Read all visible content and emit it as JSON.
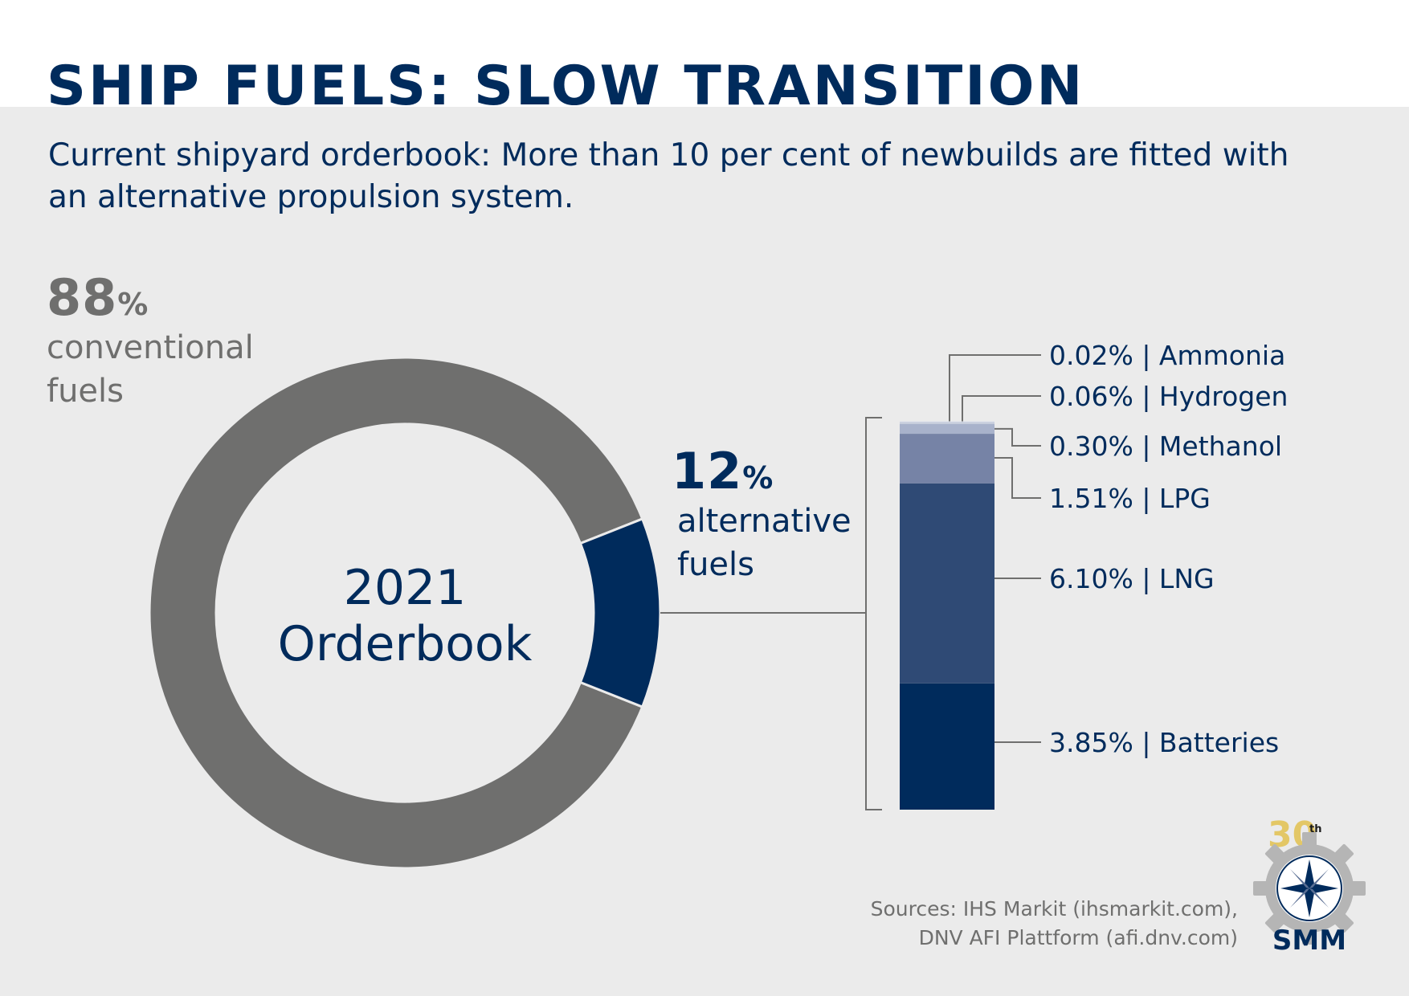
{
  "title": "SHIP FUELS: SLOW TRANSITION",
  "subtitle": "Current shipyard orderbook: More than 10 per cent of newbuilds are fitted with an alternative propulsion system.",
  "conventional": {
    "value": "88",
    "unit": "%",
    "label_line1": "conventional",
    "label_line2": "fuels"
  },
  "alternative": {
    "value": "12",
    "unit": "%",
    "label_line1": "alternative",
    "label_line2": "fuels"
  },
  "donut_center": {
    "line1": "2021",
    "line2": "Orderbook"
  },
  "sources": {
    "line1": "Sources: IHS Markit (ihsmarkit.com),",
    "line2": "DNV AFI Plattform (afi.dnv.com)"
  },
  "logo": {
    "text": "SMM",
    "anniversary": "30",
    "anniversary_suffix": "th"
  },
  "colors": {
    "conventional": "#6f6f6e",
    "alternative": "#002b5c",
    "batteries": "#002b5c",
    "lng": "#2f4a75",
    "lpg": "#7683a6",
    "methanol": "#a8b2cb",
    "hydrogen": "#c5ccdc",
    "ammonia": "#dde2ec",
    "connector": "#6f6f6e"
  },
  "chart_data": [
    {
      "type": "pie",
      "variant": "donut",
      "categories": [
        "conventional fuels",
        "alternative fuels"
      ],
      "values": [
        88,
        12
      ],
      "unit": "%",
      "center_label": "2021 Orderbook"
    },
    {
      "type": "bar",
      "variant": "stacked",
      "categories": [
        "Batteries",
        "LNG",
        "LPG",
        "Methanol",
        "Hydrogen",
        "Ammonia"
      ],
      "values": [
        3.85,
        6.1,
        1.51,
        0.3,
        0.06,
        0.02
      ],
      "labels": [
        "3.85%",
        "6.10%",
        "1.51%",
        "0.30%",
        "0.06%",
        "0.02%"
      ],
      "unit": "%",
      "total": 12
    }
  ]
}
